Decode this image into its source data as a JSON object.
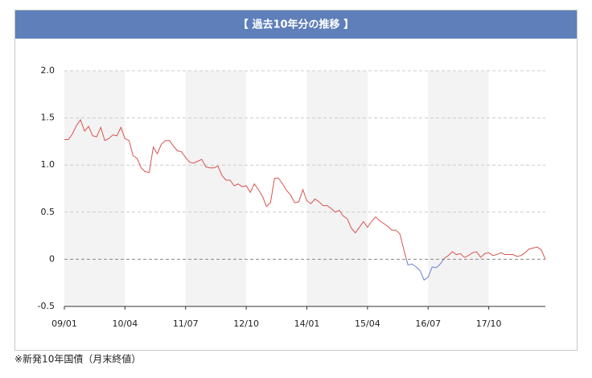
{
  "chart_data": {
    "type": "line",
    "title": "【 過去10年分の推移 】",
    "note": "※新発10年国債（月末終値）",
    "x": [
      "09/01",
      "09/02",
      "09/03",
      "09/04",
      "09/05",
      "09/06",
      "09/07",
      "09/08",
      "09/09",
      "09/10",
      "09/11",
      "09/12",
      "10/01",
      "10/02",
      "10/03",
      "10/04",
      "10/05",
      "10/06",
      "10/07",
      "10/08",
      "10/09",
      "10/10",
      "10/11",
      "10/12",
      "11/01",
      "11/02",
      "11/03",
      "11/04",
      "11/05",
      "11/06",
      "11/07",
      "11/08",
      "11/09",
      "11/10",
      "11/11",
      "11/12",
      "12/01",
      "12/02",
      "12/03",
      "12/04",
      "12/05",
      "12/06",
      "12/07",
      "12/08",
      "12/09",
      "12/10",
      "12/11",
      "12/12",
      "13/01",
      "13/02",
      "13/03",
      "13/04",
      "13/05",
      "13/06",
      "13/07",
      "13/08",
      "13/09",
      "13/10",
      "13/11",
      "13/12",
      "14/01",
      "14/02",
      "14/03",
      "14/04",
      "14/05",
      "14/06",
      "14/07",
      "14/08",
      "14/09",
      "14/10",
      "14/11",
      "14/12",
      "15/01",
      "15/02",
      "15/03",
      "15/04",
      "15/05",
      "15/06",
      "15/07",
      "15/08",
      "15/09",
      "15/10",
      "15/11",
      "15/12",
      "16/01",
      "16/02",
      "16/03",
      "16/04",
      "16/05",
      "16/06",
      "16/07",
      "16/08",
      "16/09",
      "16/10",
      "16/11",
      "16/12",
      "17/01",
      "17/02",
      "17/03",
      "17/04",
      "17/05",
      "17/06",
      "17/07",
      "17/08",
      "17/09",
      "17/10",
      "17/11",
      "17/12",
      "18/01",
      "18/02",
      "18/03",
      "18/04",
      "18/05",
      "18/06",
      "18/07",
      "18/08",
      "18/09",
      "18/10",
      "18/11",
      "18/12"
    ],
    "xtick_every": 15,
    "values": [
      1.27,
      1.27,
      1.33,
      1.42,
      1.48,
      1.36,
      1.41,
      1.31,
      1.3,
      1.4,
      1.26,
      1.28,
      1.32,
      1.31,
      1.4,
      1.28,
      1.26,
      1.1,
      1.07,
      0.97,
      0.93,
      0.92,
      1.19,
      1.12,
      1.22,
      1.26,
      1.26,
      1.2,
      1.15,
      1.14,
      1.08,
      1.03,
      1.02,
      1.04,
      1.06,
      0.98,
      0.97,
      0.97,
      0.99,
      0.89,
      0.84,
      0.84,
      0.78,
      0.8,
      0.77,
      0.78,
      0.71,
      0.8,
      0.74,
      0.67,
      0.56,
      0.6,
      0.86,
      0.86,
      0.8,
      0.73,
      0.68,
      0.6,
      0.61,
      0.74,
      0.62,
      0.59,
      0.64,
      0.61,
      0.57,
      0.57,
      0.54,
      0.5,
      0.52,
      0.46,
      0.43,
      0.33,
      0.28,
      0.34,
      0.4,
      0.34,
      0.4,
      0.45,
      0.41,
      0.38,
      0.35,
      0.31,
      0.31,
      0.27,
      0.1,
      -0.06,
      -0.05,
      -0.08,
      -0.12,
      -0.22,
      -0.19,
      -0.08,
      -0.09,
      -0.05,
      0.01,
      0.04,
      0.08,
      0.05,
      0.06,
      0.02,
      0.04,
      0.07,
      0.08,
      0.02,
      0.06,
      0.07,
      0.04,
      0.05,
      0.07,
      0.05,
      0.05,
      0.05,
      0.03,
      0.04,
      0.07,
      0.11,
      0.12,
      0.13,
      0.1,
      0.0
    ],
    "color": "#d9534f",
    "negative_color": "#6b7fcc",
    "ylim": [
      -0.5,
      2
    ],
    "yticks": [
      -0.5,
      0,
      0.5,
      {
        "value": 1,
        "label": "1.0"
      },
      {
        "value": 1.5,
        "label": "1.5"
      },
      {
        "value": 2,
        "label": "2.0"
      }
    ],
    "grid": true
  }
}
